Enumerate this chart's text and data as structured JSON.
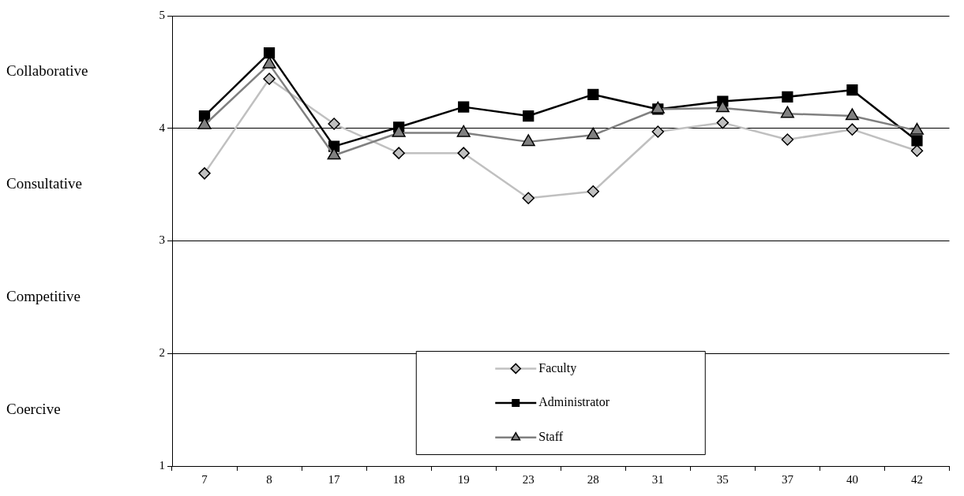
{
  "chart_data": {
    "type": "line",
    "categories": [
      "7",
      "8",
      "17",
      "18",
      "19",
      "23",
      "28",
      "31",
      "35",
      "37",
      "40",
      "42"
    ],
    "series": [
      {
        "name": "Faculty",
        "color": "#c0c0c0",
        "marker": "diamond",
        "values": [
          3.6,
          4.44,
          4.04,
          3.78,
          3.78,
          3.38,
          3.44,
          3.97,
          4.05,
          3.9,
          3.99,
          3.8
        ]
      },
      {
        "name": "Administrator",
        "color": "#000000",
        "marker": "square",
        "values": [
          4.11,
          4.67,
          3.84,
          4.01,
          4.19,
          4.11,
          4.3,
          4.17,
          4.24,
          4.28,
          4.34,
          3.89
        ]
      },
      {
        "name": "Staff",
        "color": "#808080",
        "marker": "triangle",
        "values": [
          4.03,
          4.57,
          3.76,
          3.96,
          3.96,
          3.88,
          3.94,
          4.17,
          4.18,
          4.13,
          4.11,
          3.98
        ]
      }
    ],
    "ylim": [
      1,
      5
    ],
    "yticks": [
      1,
      2,
      3,
      4,
      5
    ],
    "y2_categories": [
      "Collaborative",
      "Consultative",
      "Competitive",
      "Coercive"
    ],
    "grid": "y",
    "legend": "bottom"
  }
}
